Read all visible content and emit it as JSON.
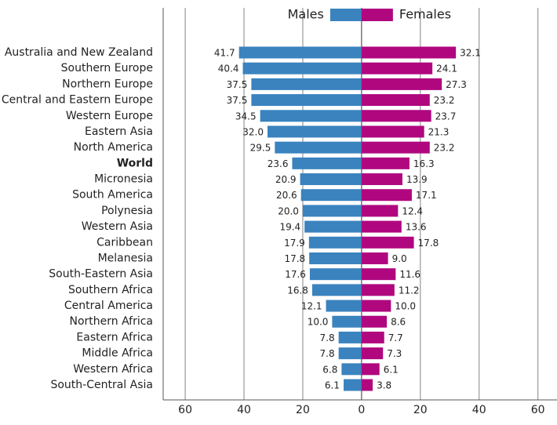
{
  "chart_data": {
    "type": "butterfly",
    "categories": [
      "Australia and New Zealand",
      "Southern Europe",
      "Northern Europe",
      "Central and Eastern Europe",
      "Western Europe",
      "Eastern Asia",
      "North America",
      "World",
      "Micronesia",
      "South America",
      "Polynesia",
      "Western Asia",
      "Caribbean",
      "Melanesia",
      "South-Eastern Asia",
      "Southern Africa",
      "Central America",
      "Northern Africa",
      "Eastern Africa",
      "Middle Africa",
      "Western Africa",
      "South-Central Asia"
    ],
    "bold_category": "World",
    "series": [
      {
        "name": "Males",
        "color": "#3a83bf",
        "side": "left",
        "values": [
          41.7,
          40.4,
          37.5,
          37.5,
          34.5,
          32.0,
          29.5,
          23.6,
          20.9,
          20.6,
          20.0,
          19.4,
          17.9,
          17.8,
          17.6,
          16.8,
          12.1,
          10.0,
          7.8,
          7.8,
          6.8,
          6.1
        ],
        "value_labels": [
          "41.7",
          "40.4",
          "37.5",
          "37.5",
          "34.5",
          "32.0",
          "29.5",
          "23.6",
          "20.9",
          "20.6",
          "20.0",
          "19.4",
          "17.9",
          "17.8",
          "17.6",
          "16.8",
          "12.1",
          "10.0",
          "7.8",
          "7.8",
          "6.8",
          "6.1"
        ]
      },
      {
        "name": "Females",
        "color": "#b0077f",
        "side": "right",
        "values": [
          32.1,
          24.1,
          27.3,
          23.2,
          23.7,
          21.3,
          23.2,
          16.3,
          13.9,
          17.1,
          12.4,
          13.6,
          17.8,
          9.0,
          11.6,
          11.2,
          10.0,
          8.6,
          7.7,
          7.3,
          6.1,
          3.8
        ],
        "value_labels": [
          "32.1",
          "24.1",
          "27.3",
          "23.2",
          "23.7",
          "21.3",
          "23.2",
          "16.3",
          "13.9",
          "17.1",
          "12.4",
          "13.6",
          "17.8",
          "9.0",
          "11.6",
          "11.2",
          "10.0",
          "8.6",
          "7.7",
          "7.3",
          "6.1",
          "3.8"
        ]
      }
    ],
    "xlim": [
      -67.5,
      66.5
    ],
    "xticks": [
      {
        "value": -60,
        "label": "60"
      },
      {
        "value": -40,
        "label": "40"
      },
      {
        "value": -20,
        "label": "20"
      },
      0,
      20,
      40,
      60
    ],
    "grid": true
  }
}
